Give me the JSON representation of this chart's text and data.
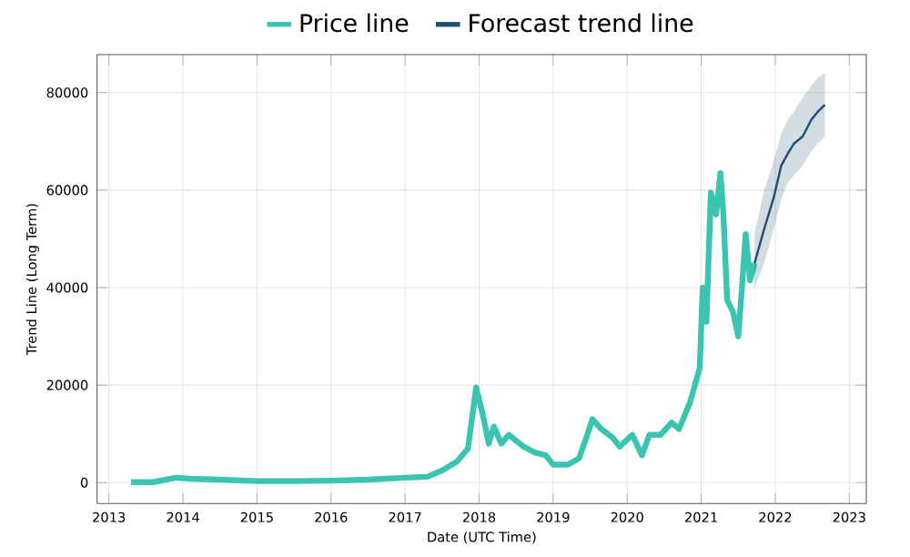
{
  "chart_data": {
    "type": "line",
    "xlabel": "Date (UTC Time)",
    "ylabel": "Trend Line (Long Term)",
    "xlim": [
      2012.84,
      2023.23
    ],
    "xticks": [
      2013,
      2014,
      2015,
      2016,
      2017,
      2018,
      2019,
      2020,
      2021,
      2022,
      2023
    ],
    "ylim": [
      -4300,
      87800
    ],
    "yticks": [
      0,
      20000,
      40000,
      60000,
      80000
    ],
    "grid": true,
    "legend": "top",
    "series": [
      {
        "name": "Price line",
        "color": "#3cc4b2",
        "x": [
          2013.3,
          2013.6,
          2013.9,
          2014.1,
          2014.5,
          2015.0,
          2015.5,
          2016.0,
          2016.5,
          2017.0,
          2017.3,
          2017.5,
          2017.7,
          2017.85,
          2017.96,
          2018.05,
          2018.13,
          2018.2,
          2018.3,
          2018.4,
          2018.6,
          2018.75,
          2018.9,
          2019.0,
          2019.2,
          2019.35,
          2019.45,
          2019.53,
          2019.65,
          2019.8,
          2019.9,
          2020.07,
          2020.2,
          2020.3,
          2020.45,
          2020.6,
          2020.7,
          2020.85,
          2020.98,
          2021.02,
          2021.07,
          2021.13,
          2021.2,
          2021.26,
          2021.3,
          2021.35,
          2021.43,
          2021.5,
          2021.55,
          2021.6,
          2021.66,
          2021.72
        ],
        "values": [
          100,
          100,
          1000,
          800,
          600,
          300,
          300,
          400,
          600,
          1000,
          1200,
          2500,
          4300,
          7000,
          19500,
          14000,
          8000,
          11500,
          8000,
          9800,
          7400,
          6200,
          5600,
          3700,
          3700,
          5000,
          9300,
          13000,
          11000,
          9300,
          7400,
          9800,
          5600,
          9800,
          9800,
          12300,
          11000,
          16500,
          23500,
          40000,
          33000,
          59500,
          55000,
          63500,
          55000,
          37500,
          35000,
          30000,
          40000,
          51000,
          41500,
          45000
        ]
      },
      {
        "name": "Forecast trend line",
        "color": "#1f4e6e",
        "x": [
          2021.72,
          2021.85,
          2021.98,
          2022.08,
          2022.17,
          2022.25,
          2022.37,
          2022.49,
          2022.57,
          2022.67
        ],
        "values": [
          45000,
          52000,
          58500,
          65000,
          67500,
          69500,
          71000,
          74500,
          76000,
          77500
        ],
        "upper": [
          51000,
          60000,
          66000,
          71500,
          74500,
          76000,
          79000,
          81500,
          83000,
          84000
        ],
        "lower": [
          40000,
          45000,
          52000,
          58000,
          61500,
          63000,
          65000,
          68000,
          69500,
          71000
        ]
      }
    ]
  }
}
